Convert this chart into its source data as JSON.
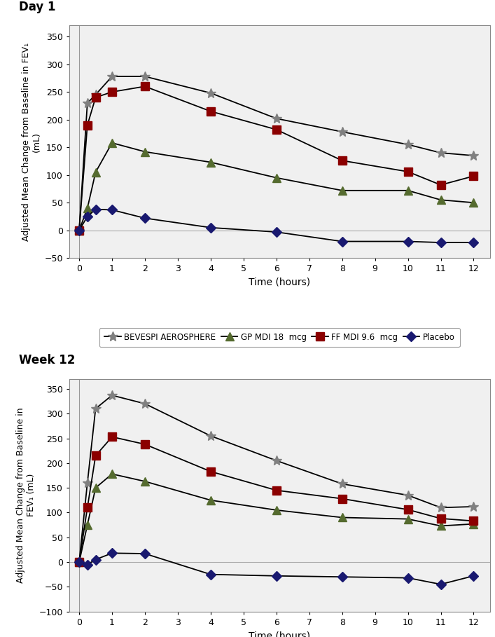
{
  "day1": {
    "time": [
      0,
      0.25,
      0.5,
      1,
      2,
      4,
      6,
      8,
      10,
      11,
      12
    ],
    "bevespi": [
      0,
      230,
      245,
      278,
      278,
      248,
      202,
      178,
      155,
      140,
      135
    ],
    "gp_mdi": [
      0,
      40,
      105,
      158,
      142,
      123,
      95,
      72,
      72,
      55,
      50
    ],
    "ff_mdi": [
      0,
      190,
      240,
      250,
      260,
      215,
      182,
      126,
      106,
      82,
      98
    ],
    "placebo": [
      0,
      25,
      38,
      37,
      22,
      5,
      -3,
      -20,
      -20,
      -22,
      -22
    ],
    "ylim": [
      -50,
      370
    ],
    "yticks": [
      -50,
      0,
      50,
      100,
      150,
      200,
      250,
      300,
      350
    ],
    "ylabel": "Adjusted Mean Change from Baseline in FEV₁\n(mL)",
    "xlabel": "Time (hours)",
    "title": "Day 1"
  },
  "week12": {
    "time": [
      0,
      0.25,
      0.5,
      1,
      2,
      4,
      6,
      8,
      10,
      11,
      12
    ],
    "bevespi": [
      0,
      160,
      310,
      337,
      320,
      255,
      205,
      158,
      135,
      110,
      112
    ],
    "gp_mdi": [
      0,
      75,
      150,
      178,
      163,
      125,
      105,
      90,
      87,
      73,
      77
    ],
    "ff_mdi": [
      0,
      110,
      215,
      253,
      238,
      183,
      145,
      128,
      106,
      88,
      83
    ],
    "placebo": [
      0,
      -5,
      5,
      18,
      17,
      -25,
      -28,
      -30,
      -32,
      -45,
      -28
    ],
    "ylim": [
      -100,
      370
    ],
    "yticks": [
      -100,
      -50,
      0,
      50,
      100,
      150,
      200,
      250,
      300,
      350
    ],
    "ylabel": "Adjusted Mean Change from Baseline in\nFEV₁ (mL)",
    "xlabel": "Time (hours)",
    "title": "Week 12"
  },
  "line_color": "#000000",
  "marker_colors": {
    "bevespi": "#808080",
    "gp_mdi": "#556b2f",
    "ff_mdi": "#8b0000",
    "placebo": "#191970"
  },
  "legend_labels": [
    "BEVESPI AEROSPHERE",
    "GP MDI 18  mcg",
    "FF MDI 9.6  mcg",
    "Placebo"
  ],
  "xticks": [
    0,
    1,
    2,
    3,
    4,
    5,
    6,
    7,
    8,
    9,
    10,
    11,
    12
  ],
  "xlim": [
    -0.3,
    12.5
  ],
  "bg_color": "#f0f0f0",
  "fig_bg": "#ffffff"
}
